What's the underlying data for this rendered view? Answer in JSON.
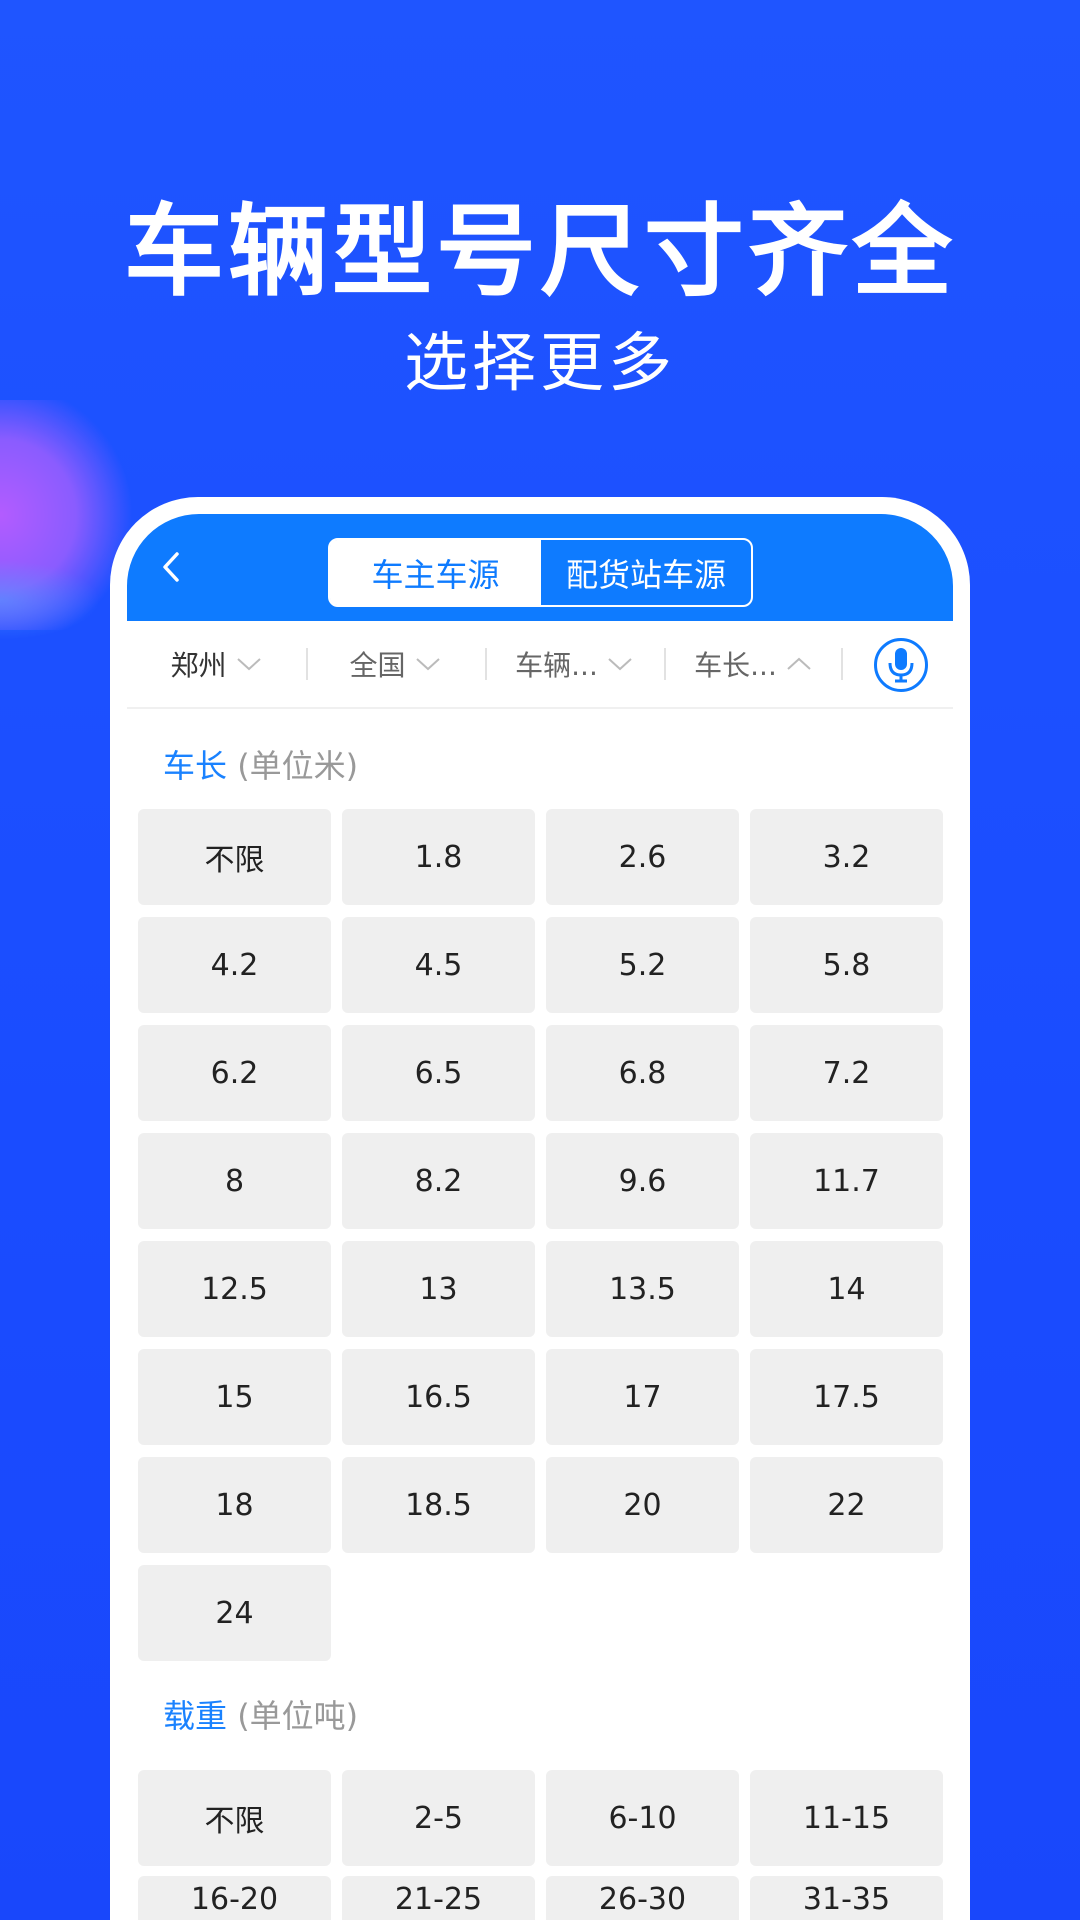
{
  "promo": {
    "title": "车辆型号尺寸齐全",
    "subtitle": "选择更多"
  },
  "colors": {
    "background": "#1a4cff",
    "header": "#0e7bff",
    "accent": "#1a82ff",
    "cell": "#efefef"
  },
  "header": {
    "tabs": [
      {
        "label": "车主车源",
        "active": true
      },
      {
        "label": "配货站车源",
        "active": false
      }
    ]
  },
  "filters": [
    {
      "label": "郑州",
      "icon": "chevron-down-icon"
    },
    {
      "label": "全国",
      "icon": "chevron-down-icon"
    },
    {
      "label": "车辆...",
      "icon": "chevron-down-icon"
    },
    {
      "label": "车长...",
      "icon": "chevron-up-icon"
    }
  ],
  "sections": [
    {
      "title": "车长",
      "unit": "(单位米)",
      "options": [
        "不限",
        "1.8",
        "2.6",
        "3.2",
        "4.2",
        "4.5",
        "5.2",
        "5.8",
        "6.2",
        "6.5",
        "6.8",
        "7.2",
        "8",
        "8.2",
        "9.6",
        "11.7",
        "12.5",
        "13",
        "13.5",
        "14",
        "15",
        "16.5",
        "17",
        "17.5",
        "18",
        "18.5",
        "20",
        "22",
        "24"
      ]
    },
    {
      "title": "载重",
      "unit": "(单位吨)",
      "options": [
        "不限",
        "2-5",
        "6-10",
        "11-15",
        "16-20",
        "21-25",
        "26-30",
        "31-35"
      ]
    }
  ]
}
